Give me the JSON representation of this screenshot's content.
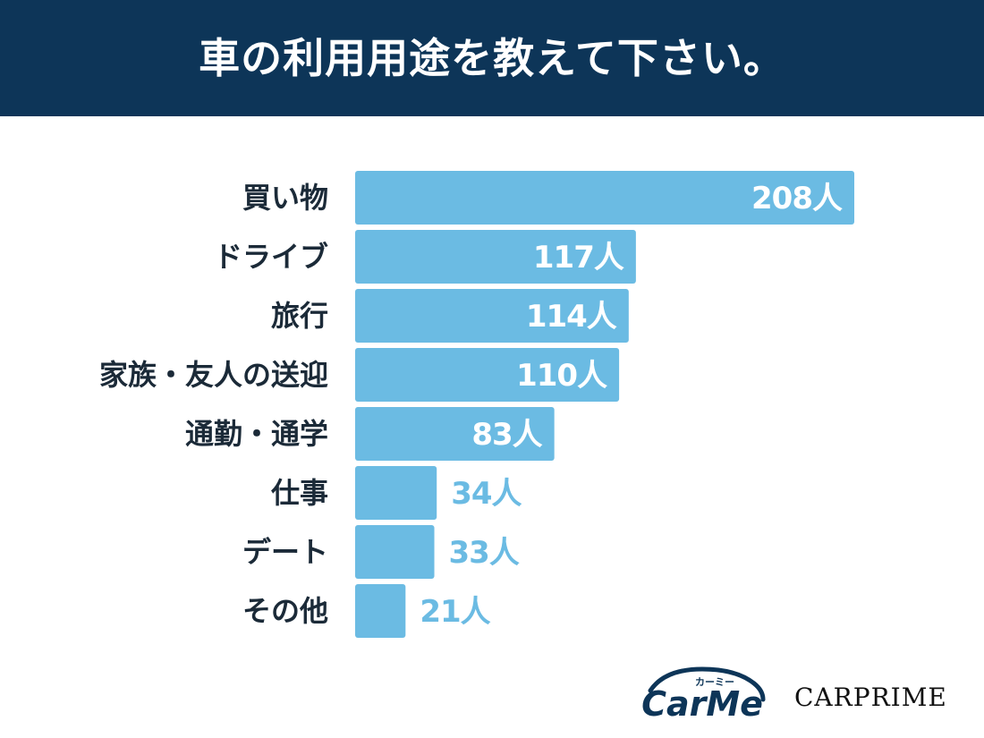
{
  "header": {
    "title": "車の利用用途を教えて下さい。"
  },
  "colors": {
    "header_bg": "#0d3558",
    "bar": "#6bbbe3",
    "label_text": "#1b2a38",
    "value_inside": "#ffffff",
    "value_outside": "#6bbbe3"
  },
  "chart_data": {
    "type": "bar",
    "orientation": "horizontal",
    "categories": [
      "買い物",
      "ドライブ",
      "旅行",
      "家族・友人の送迎",
      "通勤・通学",
      "仕事",
      "デート",
      "その他"
    ],
    "values": [
      208,
      117,
      114,
      110,
      83,
      34,
      33,
      21
    ],
    "value_labels": [
      "208人",
      "117人",
      "114人",
      "110人",
      "83人",
      "34人",
      "33人",
      "21人"
    ],
    "title": "車の利用用途を教えて下さい。",
    "xlabel": "",
    "ylabel": "",
    "grid": false
  },
  "logos": {
    "carme_wordmark": "CarMe",
    "carme_kana": "カーミー",
    "carprime": "CARPRIME"
  }
}
